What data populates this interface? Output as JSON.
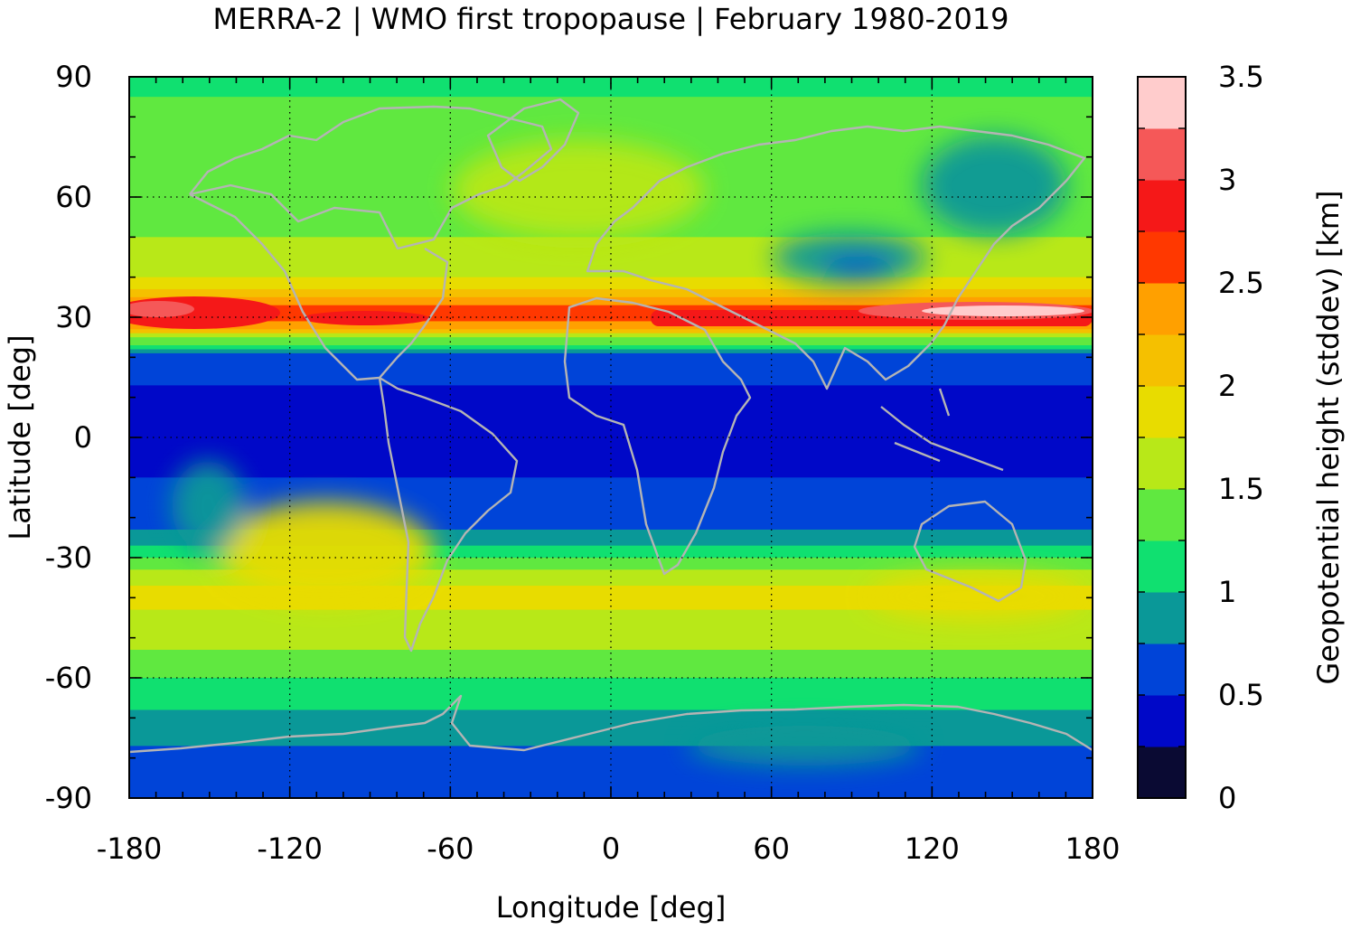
{
  "chart_data": {
    "type": "heatmap",
    "title": "MERRA-2 | WMO first tropopause | February 1980-2019",
    "xlabel": "Longitude [deg]",
    "ylabel": "Latitude [deg]",
    "colorbar_label": "Geopotential height (stddev) [km]",
    "xlim": [
      -180,
      180
    ],
    "ylim": [
      -90,
      90
    ],
    "xticks": [
      "-180",
      "-120",
      "-60",
      "0",
      "60",
      "120",
      "180"
    ],
    "yticks": [
      "90",
      "60",
      "30",
      "0",
      "-30",
      "-60",
      "-90"
    ],
    "xtick_values": [
      -180,
      -120,
      -60,
      0,
      60,
      120,
      180
    ],
    "ytick_values": [
      90,
      60,
      30,
      0,
      -30,
      -60,
      -90
    ],
    "grid": true,
    "colorbar": {
      "range": [
        0,
        3.5
      ],
      "ticks": [
        "0",
        "0.5",
        "1",
        "1.5",
        "2",
        "2.5",
        "3",
        "3.5"
      ],
      "tick_values": [
        0,
        0.5,
        1,
        1.5,
        2,
        2.5,
        3,
        3.5
      ],
      "levels": [
        0,
        0.25,
        0.5,
        0.75,
        1,
        1.25,
        1.5,
        1.75,
        2,
        2.25,
        2.5,
        2.75,
        3,
        3.25,
        3.5
      ],
      "colors": [
        "#0a0a33",
        "#0008c8",
        "#0044d8",
        "#0a9898",
        "#10e070",
        "#60e840",
        "#b8e818",
        "#e8dc00",
        "#f5c000",
        "#ffa000",
        "#ff3800",
        "#f51818",
        "#f55858",
        "#ffcccc"
      ]
    },
    "zonal_mean_profile": {
      "lat": [
        90,
        80,
        70,
        60,
        50,
        40,
        35,
        32,
        30,
        28,
        25,
        22,
        20,
        10,
        0,
        -10,
        -20,
        -25,
        -30,
        -35,
        -40,
        -45,
        -50,
        -55,
        -60,
        -65,
        -70,
        -75,
        -80,
        -90
      ],
      "value": [
        1.2,
        1.3,
        1.4,
        1.4,
        1.5,
        1.7,
        2.2,
        2.6,
        2.7,
        2.4,
        1.6,
        0.9,
        0.6,
        0.45,
        0.45,
        0.5,
        0.65,
        0.8,
        1.2,
        1.7,
        1.8,
        1.7,
        1.6,
        1.45,
        1.25,
        1.1,
        0.95,
        0.85,
        0.6,
        0.6
      ]
    }
  }
}
